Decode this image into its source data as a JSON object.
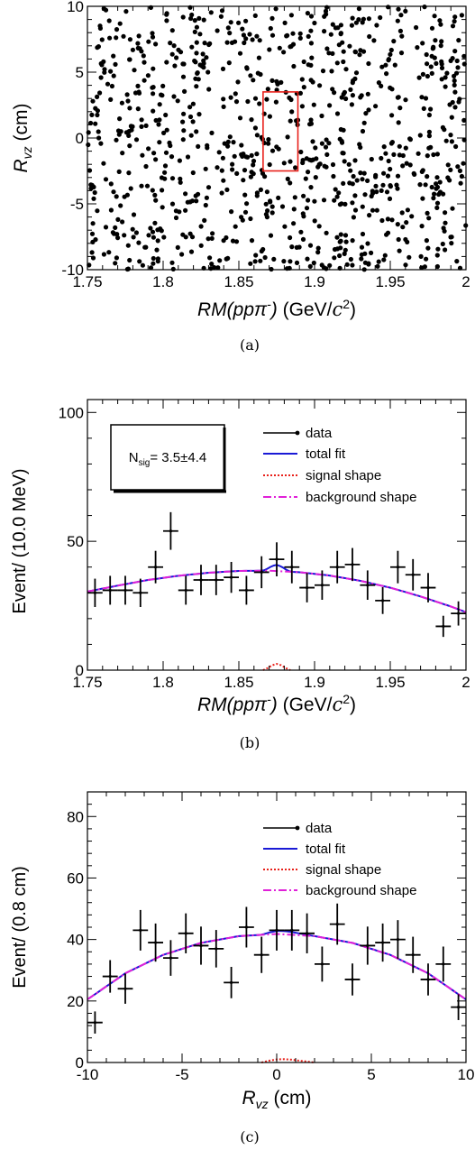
{
  "chart_data": [
    {
      "type": "scatter",
      "panel_label": "(a)",
      "ylabel_main": "R",
      "ylabel_sub": "vz",
      "ylabel_unit": " (cm)",
      "xlabel_main": "RM(ppπ",
      "xlabel_sup": "-",
      "xlabel_close": ")",
      "xlabel_unit": " (GeV/",
      "xlabel_c": "c",
      "xlabel_csup": "2",
      "xlabel_end": ")",
      "xlim": [
        1.75,
        2.0
      ],
      "ylim": [
        -10,
        10
      ],
      "xticks": [
        "1.75",
        "1.8",
        "1.85",
        "1.9",
        "1.95",
        "2"
      ],
      "xtick_values": [
        1.75,
        1.8,
        1.85,
        1.9,
        1.95,
        2.0
      ],
      "yticks": [
        "-10",
        "-5",
        "0",
        "5",
        "10"
      ],
      "ytick_values": [
        -10,
        -5,
        0,
        5,
        10
      ],
      "signal_box": {
        "x": [
          1.866,
          1.889
        ],
        "y": [
          -2.5,
          3.5
        ],
        "color": "#e8201a"
      },
      "n_points": 900,
      "points_note_color": "#000000"
    },
    {
      "type": "line",
      "panel_label": "(b)",
      "ylabel": "Event/ (10.0 MeV)",
      "xlabel_main": "RM(ppπ",
      "xlabel_sup": "-",
      "xlabel_close": ")",
      "xlabel_unit": " (GeV/",
      "xlabel_c": "c",
      "xlabel_csup": "2",
      "xlabel_end": ")",
      "xlim": [
        1.75,
        2.0
      ],
      "ylim": [
        0,
        105
      ],
      "xticks": [
        "1.75",
        "1.8",
        "1.85",
        "1.9",
        "1.95",
        "2"
      ],
      "xtick_values": [
        1.75,
        1.8,
        1.85,
        1.9,
        1.95,
        2.0
      ],
      "yticks": [
        "0",
        "50",
        "100"
      ],
      "ytick_values": [
        0,
        50,
        100
      ],
      "nsig_text": "N",
      "nsig_sub": "sig",
      "nsig_value": "= 3.5±4.4",
      "legend": [
        "data",
        "total fit",
        "signal shape",
        "background shape"
      ],
      "colors": {
        "data": "#000000",
        "total": "#1a1ad6",
        "signal": "#e8201a",
        "background": "#e020d8"
      },
      "x": [
        1.755,
        1.765,
        1.775,
        1.785,
        1.795,
        1.805,
        1.815,
        1.825,
        1.835,
        1.845,
        1.855,
        1.865,
        1.875,
        1.885,
        1.895,
        1.905,
        1.915,
        1.925,
        1.935,
        1.945,
        1.955,
        1.965,
        1.975,
        1.985,
        1.995
      ],
      "y": [
        30,
        31,
        31,
        30,
        40,
        54,
        31,
        35,
        35,
        36,
        31,
        38,
        43,
        40,
        32,
        33,
        40,
        41,
        33,
        27,
        40,
        37,
        32,
        17,
        22
      ],
      "yerr": [
        5.5,
        5.6,
        5.6,
        5.5,
        6.3,
        7.3,
        5.6,
        5.9,
        5.9,
        6.0,
        5.6,
        6.2,
        6.6,
        6.3,
        5.7,
        5.7,
        6.3,
        6.4,
        5.7,
        5.2,
        6.3,
        6.1,
        5.7,
        4.1,
        4.7
      ],
      "background_curve": {
        "x": [
          1.75,
          1.77,
          1.79,
          1.81,
          1.83,
          1.85,
          1.87,
          1.89,
          1.91,
          1.93,
          1.95,
          1.97,
          1.99,
          2.0
        ],
        "y": [
          30.5,
          32.8,
          35.0,
          36.6,
          37.8,
          38.5,
          38.6,
          38.0,
          36.7,
          34.7,
          32.0,
          28.6,
          24.7,
          22.5
        ]
      },
      "signal_curve": {
        "x": [
          1.866,
          1.869,
          1.872,
          1.875,
          1.878,
          1.881,
          1.884
        ],
        "y": [
          0,
          0.8,
          1.9,
          2.4,
          1.9,
          0.8,
          0
        ]
      }
    },
    {
      "type": "line",
      "panel_label": "(c)",
      "ylabel": "Event/ (0.8 cm)",
      "xlabel_main": "R",
      "xlabel_sub": "vz",
      "xlabel_unit": " (cm)",
      "xlim": [
        -10,
        10
      ],
      "ylim": [
        0,
        88
      ],
      "xticks": [
        "-10",
        "-5",
        "0",
        "5",
        "10"
      ],
      "xtick_values": [
        -10,
        -5,
        0,
        5,
        10
      ],
      "yticks": [
        "0",
        "20",
        "40",
        "60",
        "80"
      ],
      "ytick_values": [
        0,
        20,
        40,
        60,
        80
      ],
      "legend": [
        "data",
        "total fit",
        "signal shape",
        "background shape"
      ],
      "colors": {
        "data": "#000000",
        "total": "#1a1ad6",
        "signal": "#e8201a",
        "background": "#e020d8"
      },
      "x": [
        -9.6,
        -8.8,
        -8.0,
        -7.2,
        -6.4,
        -5.6,
        -4.8,
        -4.0,
        -3.2,
        -2.4,
        -1.6,
        -0.8,
        0.0,
        0.8,
        1.6,
        2.4,
        3.2,
        4.0,
        4.8,
        5.6,
        6.4,
        7.2,
        8.0,
        8.8,
        9.6
      ],
      "y": [
        13,
        28,
        24,
        43,
        39,
        34,
        42,
        38,
        37,
        26,
        44,
        35,
        43,
        43,
        42,
        32,
        45,
        27,
        38,
        39,
        40,
        35,
        27,
        32,
        18
      ],
      "yerr": [
        3.6,
        5.3,
        4.9,
        6.6,
        6.2,
        5.8,
        6.5,
        6.2,
        6.1,
        5.1,
        6.6,
        5.9,
        6.6,
        6.6,
        6.5,
        5.7,
        6.7,
        5.2,
        6.2,
        6.2,
        6.3,
        5.9,
        5.2,
        5.7,
        4.2
      ],
      "background_curve": {
        "x": [
          -10,
          -8,
          -6,
          -4,
          -2,
          0,
          2,
          4,
          6,
          8,
          10
        ],
        "y": [
          20.5,
          29.0,
          35.0,
          38.9,
          41.1,
          41.8,
          41.1,
          38.9,
          35.0,
          29.0,
          20.5
        ]
      },
      "signal_curve": {
        "x": [
          -0.8,
          -0.4,
          0.0,
          0.4,
          0.8,
          1.2,
          1.6,
          2.0
        ],
        "y": [
          0,
          0.6,
          1.0,
          1.1,
          0.9,
          0.6,
          0.3,
          0
        ]
      }
    }
  ]
}
